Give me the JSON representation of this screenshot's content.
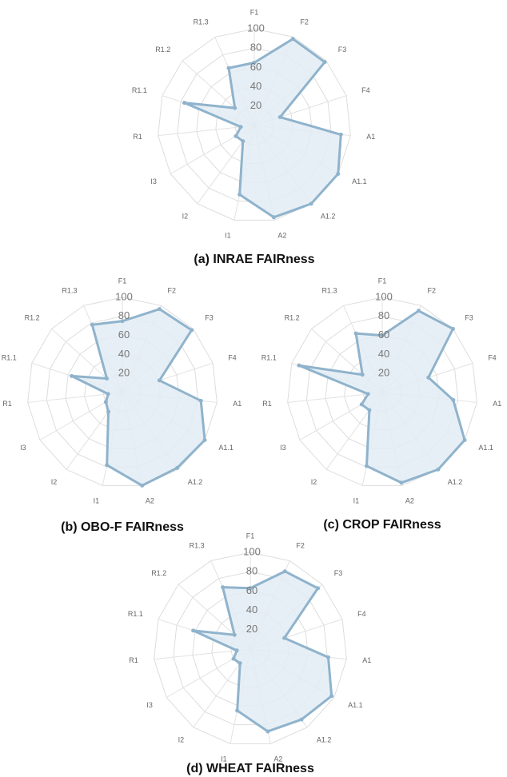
{
  "chart_data": [
    {
      "type": "radar",
      "title": "(a) INRAE FAIRness",
      "categories": [
        "F1",
        "F2",
        "F3",
        "F4",
        "A1",
        "A1.1",
        "A1.2",
        "A2",
        "I1",
        "I2",
        "I3",
        "R1",
        "R1.1",
        "R1.2",
        "R1.3"
      ],
      "values": [
        65,
        98,
        98,
        28,
        90,
        100,
        100,
        97,
        73,
        20,
        22,
        14,
        76,
        27,
        65
      ],
      "rlim": [
        0,
        100
      ],
      "rticks": [
        20,
        40,
        60,
        80,
        100
      ],
      "color": "#8fb3cc",
      "fill": "#e3ecf5"
    },
    {
      "type": "radar",
      "title": "(b) OBO-F FAIRness",
      "categories": [
        "F1",
        "F2",
        "F3",
        "F4",
        "A1",
        "A1.1",
        "A1.2",
        "A2",
        "I1",
        "I2",
        "I3",
        "R1",
        "R1.1",
        "R1.2",
        "R1.3"
      ],
      "values": [
        75,
        96,
        98,
        41,
        83,
        100,
        98,
        100,
        78,
        25,
        20,
        15,
        56,
        22,
        78
      ],
      "rlim": [
        0,
        100
      ],
      "rticks": [
        20,
        40,
        60,
        80,
        100
      ],
      "color": "#8fb3cc",
      "fill": "#e3ecf5"
    },
    {
      "type": "radar",
      "title": "(c) CROP FAIRness",
      "categories": [
        "F1",
        "F2",
        "F3",
        "F4",
        "A1",
        "A1.1",
        "A1.2",
        "A2",
        "I1",
        "I2",
        "I3",
        "R1",
        "R1.1",
        "R1.2",
        "R1.3"
      ],
      "values": [
        60,
        94,
        100,
        51,
        75,
        100,
        100,
        97,
        79,
        23,
        25,
        15,
        92,
        28,
        68
      ],
      "rlim": [
        0,
        100
      ],
      "rticks": [
        20,
        40,
        60,
        80,
        100
      ],
      "color": "#8fb3cc",
      "fill": "#e3ecf5"
    },
    {
      "type": "radar",
      "title": "(d) WHEAT FAIRness",
      "categories": [
        "F1",
        "F2",
        "F3",
        "F4",
        "A1",
        "A1.1",
        "A1.2",
        "A2",
        "I1",
        "I2",
        "I3",
        "R1",
        "R1.1",
        "R1.2",
        "R1.3"
      ],
      "values": [
        63,
        88,
        94,
        37,
        81,
        97,
        90,
        87,
        65,
        18,
        20,
        14,
        62,
        22,
        70
      ],
      "rlim": [
        0,
        100
      ],
      "rticks": [
        20,
        40,
        60,
        80,
        100
      ],
      "color": "#8fb3cc",
      "fill": "#e3ecf5"
    }
  ]
}
